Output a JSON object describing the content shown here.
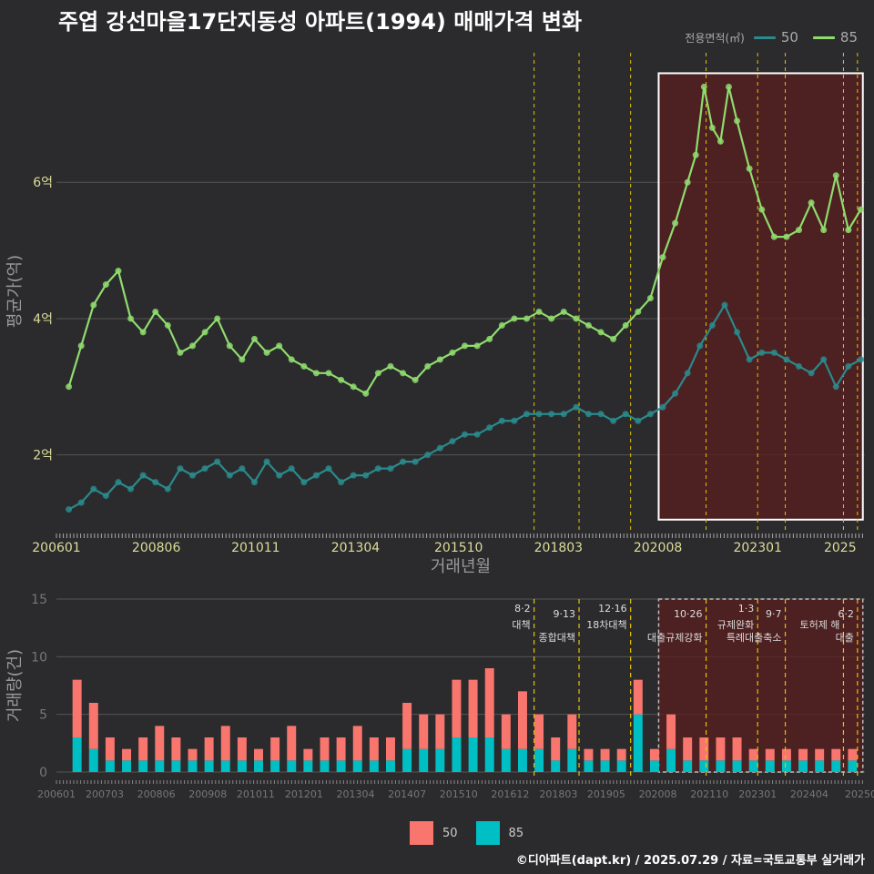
{
  "title": "주엽 강선마을17단지동성 아파트(1994) 매매가격 변화",
  "credit": "©디아파트(dapt.kr) / 2025.07.29 / 자료=국토교통부 실거래가",
  "colors": {
    "background": "#2b2b2d",
    "grid": "#555555",
    "series_50": "#2a8a8c",
    "series_85": "#8fdc6e",
    "bar_50": "#f8766d",
    "bar_85": "#00bfc4",
    "policy_line": "#e6c300",
    "highlight_fill": "#5a1e1e",
    "highlight_border": "#ffffff",
    "tick_text": "#dddd99"
  },
  "legend_top": {
    "title": "전용면적(㎡)",
    "items": [
      {
        "label": "50",
        "color": "#2a8a8c"
      },
      {
        "label": "85",
        "color": "#8fdc6e"
      }
    ]
  },
  "legend_bottom": {
    "items": [
      {
        "label": "50",
        "color": "#f8766d"
      },
      {
        "label": "85",
        "color": "#00bfc4"
      }
    ]
  },
  "chart_data": [
    {
      "type": "line",
      "title": "주엽 강선마을17단지동성 아파트(1994) 매매가격 변화",
      "xlabel": "거래년월",
      "ylabel": "평균가(억)",
      "x_range": [
        2006.0,
        2025.6
      ],
      "ylim": [
        0.9,
        7.9
      ],
      "y_ticks": [
        2,
        4,
        6
      ],
      "y_tick_labels": [
        "2억",
        "4억",
        "6억"
      ],
      "x_ticks": [
        2006.0,
        2008.42,
        2010.83,
        2013.25,
        2015.75,
        2018.17,
        2020.58,
        2023.0,
        2025.0
      ],
      "x_tick_labels": [
        "200601",
        "200806",
        "201011",
        "201304",
        "201510",
        "201803",
        "202008",
        "202301",
        "2025"
      ],
      "grid": true,
      "legend_position": "top-right",
      "highlight_range": {
        "x": [
          2020.6,
          2025.55
        ],
        "y": [
          1.05,
          7.6
        ]
      },
      "policy_lines_x": [
        2017.58,
        2018.67,
        2019.92,
        2021.75,
        2023.0,
        2023.67,
        2025.08,
        2025.42
      ],
      "series": [
        {
          "name": "50",
          "x": [
            2006.3,
            2006.6,
            2006.9,
            2007.2,
            2007.5,
            2007.8,
            2008.1,
            2008.4,
            2008.7,
            2009.0,
            2009.3,
            2009.6,
            2009.9,
            2010.2,
            2010.5,
            2010.8,
            2011.1,
            2011.4,
            2011.7,
            2012.0,
            2012.3,
            2012.6,
            2012.9,
            2013.2,
            2013.5,
            2013.8,
            2014.1,
            2014.4,
            2014.7,
            2015.0,
            2015.3,
            2015.6,
            2015.9,
            2016.2,
            2016.5,
            2016.8,
            2017.1,
            2017.4,
            2017.7,
            2018.0,
            2018.3,
            2018.6,
            2018.9,
            2019.2,
            2019.5,
            2019.8,
            2020.1,
            2020.4,
            2020.7,
            2021.0,
            2021.3,
            2021.6,
            2021.9,
            2022.2,
            2022.5,
            2022.8,
            2023.1,
            2023.4,
            2023.7,
            2024.0,
            2024.3,
            2024.6,
            2024.9,
            2025.2,
            2025.5
          ],
          "y": [
            1.2,
            1.3,
            1.5,
            1.4,
            1.6,
            1.5,
            1.7,
            1.6,
            1.5,
            1.8,
            1.7,
            1.8,
            1.9,
            1.7,
            1.8,
            1.6,
            1.9,
            1.7,
            1.8,
            1.6,
            1.7,
            1.8,
            1.6,
            1.7,
            1.7,
            1.8,
            1.8,
            1.9,
            1.9,
            2.0,
            2.1,
            2.2,
            2.3,
            2.3,
            2.4,
            2.5,
            2.5,
            2.6,
            2.6,
            2.6,
            2.6,
            2.7,
            2.6,
            2.6,
            2.5,
            2.6,
            2.5,
            2.6,
            2.7,
            2.9,
            3.2,
            3.6,
            3.9,
            4.2,
            3.8,
            3.4,
            3.5,
            3.5,
            3.4,
            3.3,
            3.2,
            3.4,
            3.0,
            3.3,
            3.4
          ]
        },
        {
          "name": "85",
          "x": [
            2006.3,
            2006.6,
            2006.9,
            2007.2,
            2007.5,
            2007.8,
            2008.1,
            2008.4,
            2008.7,
            2009.0,
            2009.3,
            2009.6,
            2009.9,
            2010.2,
            2010.5,
            2010.8,
            2011.1,
            2011.4,
            2011.7,
            2012.0,
            2012.3,
            2012.6,
            2012.9,
            2013.2,
            2013.5,
            2013.8,
            2014.1,
            2014.4,
            2014.7,
            2015.0,
            2015.3,
            2015.6,
            2015.9,
            2016.2,
            2016.5,
            2016.8,
            2017.1,
            2017.4,
            2017.7,
            2018.0,
            2018.3,
            2018.6,
            2018.9,
            2019.2,
            2019.5,
            2019.8,
            2020.1,
            2020.4,
            2020.7,
            2021.0,
            2021.3,
            2021.5,
            2021.7,
            2021.9,
            2022.1,
            2022.3,
            2022.5,
            2022.8,
            2023.1,
            2023.4,
            2023.7,
            2024.0,
            2024.3,
            2024.6,
            2024.9,
            2025.2,
            2025.5
          ],
          "y": [
            3.0,
            3.6,
            4.2,
            4.5,
            4.7,
            4.0,
            3.8,
            4.1,
            3.9,
            3.5,
            3.6,
            3.8,
            4.0,
            3.6,
            3.4,
            3.7,
            3.5,
            3.6,
            3.4,
            3.3,
            3.2,
            3.2,
            3.1,
            3.0,
            2.9,
            3.2,
            3.3,
            3.2,
            3.1,
            3.3,
            3.4,
            3.5,
            3.6,
            3.6,
            3.7,
            3.9,
            4.0,
            4.0,
            4.1,
            4.0,
            4.1,
            4.0,
            3.9,
            3.8,
            3.7,
            3.9,
            4.1,
            4.3,
            4.9,
            5.4,
            6.0,
            6.4,
            7.4,
            6.8,
            6.6,
            7.4,
            6.9,
            6.2,
            5.6,
            5.2,
            5.2,
            5.3,
            5.7,
            5.3,
            6.1,
            5.3,
            5.6
          ]
        }
      ]
    },
    {
      "type": "bar",
      "xlabel": "",
      "ylabel": "거래량(건)",
      "ylim": [
        0,
        15
      ],
      "y_ticks": [
        0,
        5,
        10,
        15
      ],
      "x_range": [
        2006.0,
        2025.6
      ],
      "x_ticks": [
        2006.0,
        2007.17,
        2008.42,
        2009.67,
        2010.83,
        2012.0,
        2013.25,
        2014.5,
        2015.75,
        2017.0,
        2018.17,
        2019.33,
        2020.58,
        2021.83,
        2023.0,
        2024.25,
        2025.5
      ],
      "x_tick_labels": [
        "200601",
        "200703",
        "200806",
        "200908",
        "201011",
        "201201",
        "201304",
        "201407",
        "201510",
        "201612",
        "201803",
        "201905",
        "202008",
        "202110",
        "202301",
        "202404",
        "20250"
      ],
      "stacked": true,
      "grid": true,
      "highlight_range": {
        "x": [
          2020.6,
          2025.55
        ],
        "y": [
          0,
          15
        ]
      },
      "policy_events": [
        {
          "x": 2017.58,
          "date": "8·2",
          "label": "대책"
        },
        {
          "x": 2018.67,
          "date": "9·13",
          "label": "종합대책"
        },
        {
          "x": 2019.92,
          "date": "12·16",
          "label": "18차대책"
        },
        {
          "x": 2021.75,
          "date": "10·26",
          "label": "대출규제강화"
        },
        {
          "x": 2023.0,
          "date": "1·3",
          "label": "규제완화"
        },
        {
          "x": 2023.67,
          "date": "9·7",
          "label": "특례대출축소"
        },
        {
          "x": 2025.08,
          "date": "",
          "label": "토허제 해"
        },
        {
          "x": 2025.42,
          "date": "6·2",
          "label": "대출"
        }
      ],
      "series": [
        {
          "name": "50",
          "x": [
            2006.5,
            2006.9,
            2007.3,
            2007.7,
            2008.1,
            2008.5,
            2008.9,
            2009.3,
            2009.7,
            2010.1,
            2010.5,
            2010.9,
            2011.3,
            2011.7,
            2012.1,
            2012.5,
            2012.9,
            2013.3,
            2013.7,
            2014.1,
            2014.5,
            2014.9,
            2015.3,
            2015.7,
            2016.1,
            2016.5,
            2016.9,
            2017.3,
            2017.7,
            2018.1,
            2018.5,
            2018.9,
            2019.3,
            2019.7,
            2020.1,
            2020.5,
            2020.9,
            2021.3,
            2021.7,
            2022.1,
            2022.5,
            2022.9,
            2023.3,
            2023.7,
            2024.1,
            2024.5,
            2024.9,
            2025.3
          ],
          "y": [
            5,
            4,
            2,
            1,
            2,
            3,
            2,
            1,
            2,
            3,
            2,
            1,
            2,
            3,
            1,
            2,
            2,
            3,
            2,
            2,
            4,
            3,
            3,
            5,
            5,
            6,
            3,
            5,
            3,
            2,
            3,
            1,
            1,
            1,
            3,
            1,
            3,
            2,
            2,
            2,
            2,
            1,
            1,
            1,
            1,
            1,
            1,
            1
          ]
        },
        {
          "name": "85",
          "x": [
            2006.5,
            2006.9,
            2007.3,
            2007.7,
            2008.1,
            2008.5,
            2008.9,
            2009.3,
            2009.7,
            2010.1,
            2010.5,
            2010.9,
            2011.3,
            2011.7,
            2012.1,
            2012.5,
            2012.9,
            2013.3,
            2013.7,
            2014.1,
            2014.5,
            2014.9,
            2015.3,
            2015.7,
            2016.1,
            2016.5,
            2016.9,
            2017.3,
            2017.7,
            2018.1,
            2018.5,
            2018.9,
            2019.3,
            2019.7,
            2020.1,
            2020.5,
            2020.9,
            2021.3,
            2021.7,
            2022.1,
            2022.5,
            2022.9,
            2023.3,
            2023.7,
            2024.1,
            2024.5,
            2024.9,
            2025.3
          ],
          "y": [
            3,
            2,
            1,
            1,
            1,
            1,
            1,
            1,
            1,
            1,
            1,
            1,
            1,
            1,
            1,
            1,
            1,
            1,
            1,
            1,
            2,
            2,
            2,
            3,
            3,
            3,
            2,
            2,
            2,
            1,
            2,
            1,
            1,
            1,
            5,
            1,
            2,
            1,
            1,
            1,
            1,
            1,
            1,
            1,
            1,
            1,
            1,
            1
          ]
        }
      ]
    }
  ]
}
